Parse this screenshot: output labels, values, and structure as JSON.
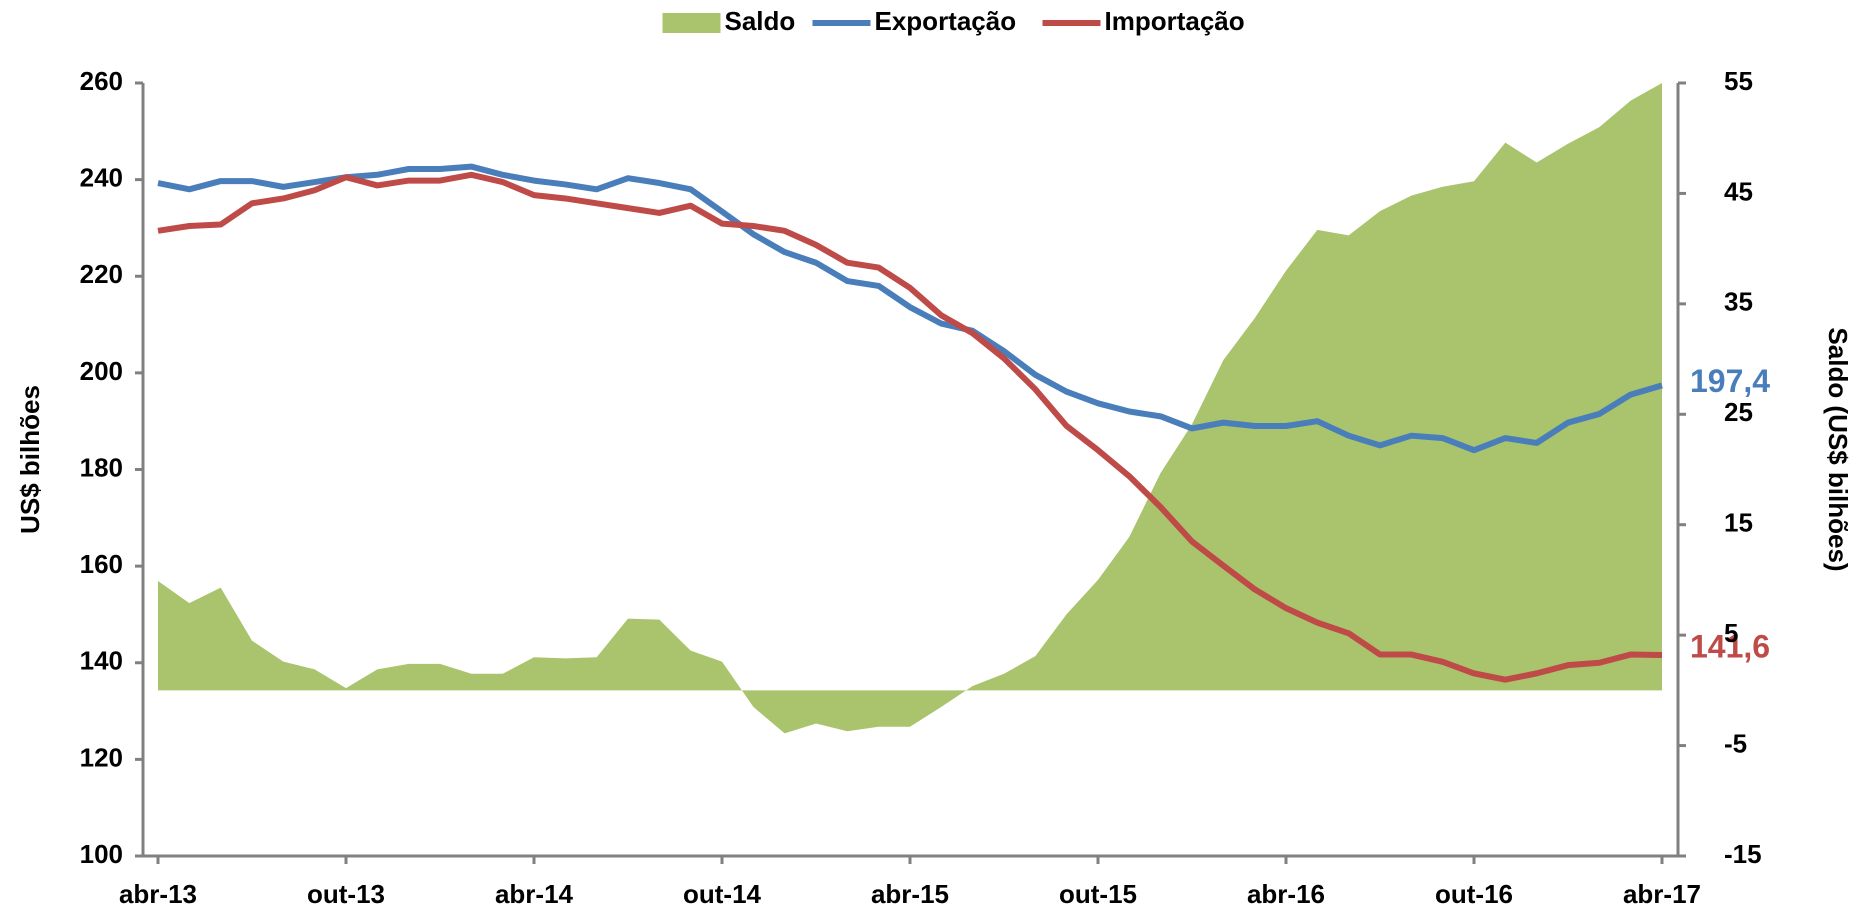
{
  "chart_data": {
    "type": "line",
    "categories": [
      "abr-13",
      null,
      null,
      null,
      null,
      null,
      "out-13",
      null,
      null,
      null,
      null,
      null,
      "abr-14",
      null,
      null,
      null,
      null,
      null,
      "out-14",
      null,
      null,
      null,
      null,
      null,
      "abr-15",
      null,
      null,
      null,
      null,
      null,
      "out-15",
      null,
      null,
      null,
      null,
      null,
      "abr-16",
      null,
      null,
      null,
      null,
      null,
      "out-16",
      null,
      null,
      null,
      null,
      null,
      "abr-17"
    ],
    "ylabel": "US$ bilhões",
    "y2label": "Saldo (US$ bilhões)",
    "ylim": [
      100,
      260
    ],
    "yticks": [
      100,
      120,
      140,
      160,
      180,
      200,
      220,
      240,
      260
    ],
    "y2lim": [
      -15,
      55
    ],
    "y2ticks": [
      -15,
      -5,
      5,
      15,
      25,
      35,
      45,
      55
    ],
    "legend": "top",
    "series": [
      {
        "name": "Saldo",
        "kind": "area",
        "axis": "y2",
        "color": "#a9c46c",
        "values": [
          9.9,
          7.9,
          9.3,
          4.5,
          2.6,
          1.9,
          0.2,
          1.9,
          2.4,
          2.4,
          1.5,
          1.5,
          3,
          2.9,
          3,
          6.5,
          6.4,
          3.6,
          2.6,
          -1.5,
          -3.9,
          -3,
          -3.7,
          -3.3,
          -3.3,
          -1.5,
          0.4,
          1.5,
          3.1,
          6.9,
          10,
          13.9,
          19.7,
          24.1,
          29.9,
          33.7,
          38,
          41.7,
          41.2,
          43.4,
          44.8,
          45.6,
          46.1,
          49.6,
          47.8,
          49.5,
          51,
          53.4,
          55
        ]
      },
      {
        "name": "Exportação",
        "kind": "line",
        "axis": "y",
        "color": "#4a7ebb",
        "values": [
          239.3,
          238,
          239.7,
          239.7,
          238.5,
          239.5,
          240.5,
          241,
          242.2,
          242.2,
          242.7,
          241,
          239.8,
          239,
          238,
          240.3,
          239.3,
          238,
          233.4,
          228.7,
          225,
          222.8,
          219,
          218,
          213.6,
          210.2,
          208.7,
          204.5,
          199.6,
          196.1,
          193.7,
          192,
          191,
          188.5,
          189.7,
          189,
          189,
          190,
          187,
          185,
          187,
          186.5,
          184,
          186.5,
          185.5,
          189.7,
          191.5,
          195.5,
          197.4
        ],
        "value_labels": [
          null,
          null,
          null,
          null,
          null,
          null,
          null,
          null,
          null,
          null,
          null,
          null,
          null,
          null,
          null,
          null,
          null,
          null,
          null,
          null,
          null,
          null,
          null,
          null,
          null,
          null,
          null,
          null,
          null,
          null,
          null,
          null,
          null,
          null,
          null,
          null,
          null,
          null,
          null,
          null,
          null,
          null,
          null,
          null,
          null,
          null,
          null,
          null,
          "197,4"
        ]
      },
      {
        "name": "Importação",
        "kind": "line",
        "axis": "y",
        "color": "#be4b48",
        "values": [
          229.4,
          230.4,
          230.7,
          235.1,
          236.1,
          237.8,
          240.5,
          238.8,
          239.8,
          239.8,
          241,
          239.5,
          236.8,
          236.1,
          235.1,
          234.1,
          233.1,
          234.6,
          230.9,
          230.4,
          229.4,
          226.5,
          222.8,
          221.8,
          217.6,
          211.9,
          208.2,
          203,
          196.6,
          189,
          184,
          178.6,
          172.2,
          165.1,
          160.1,
          155.2,
          151.3,
          148.3,
          146.1,
          141.7,
          141.7,
          140.2,
          137.8,
          136.5,
          137.8,
          139.5,
          140,
          141.7,
          141.6
        ],
        "value_labels": [
          null,
          null,
          null,
          null,
          null,
          null,
          null,
          null,
          null,
          null,
          null,
          null,
          null,
          null,
          null,
          null,
          null,
          null,
          null,
          null,
          null,
          null,
          null,
          null,
          null,
          null,
          null,
          null,
          null,
          null,
          null,
          null,
          null,
          null,
          null,
          null,
          null,
          null,
          null,
          null,
          null,
          null,
          null,
          null,
          null,
          null,
          null,
          null,
          "141,6"
        ]
      }
    ]
  }
}
